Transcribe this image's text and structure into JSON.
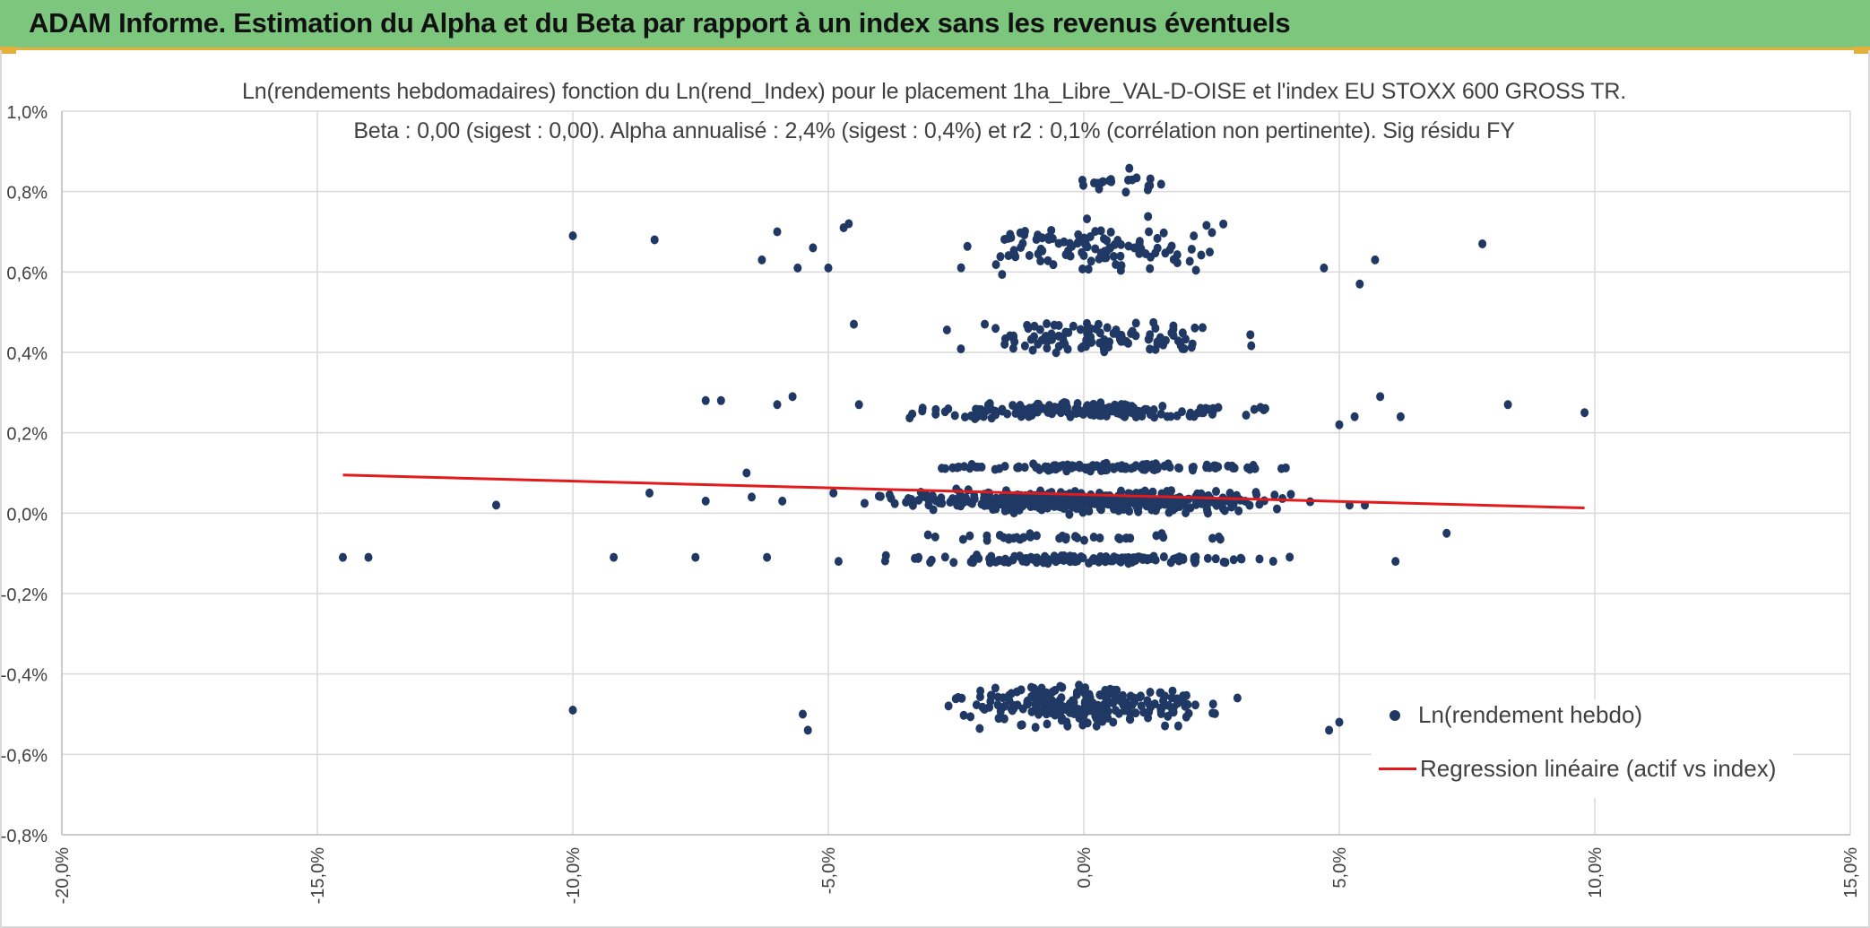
{
  "header": {
    "title": "ADAM Informe. Estimation du Alpha et du Beta par rapport à un index sans les revenus éventuels",
    "accent_color": "#7dc67d"
  },
  "chart_data": {
    "type": "scatter",
    "title": "Ln(rendements hebdomadaires) fonction du Ln(rend_Index) pour le placement 1ha_Libre_VAL-D-OISE et l'index EU STOXX 600 GROSS TR.",
    "subtitle": "Beta : 0,00 (sigest : 0,00). Alpha annualisé : 2,4% (sigest : 0,4%) et r2 : 0,1% (corrélation non pertinente). Sig résidu FY",
    "xlabel": "",
    "ylabel": "",
    "xlim": [
      -20,
      15
    ],
    "ylim": [
      -0.8,
      1.0
    ],
    "x_ticks": [
      "-20,0%",
      "-15,0%",
      "-10,0%",
      "-5,0%",
      "0,0%",
      "5,0%",
      "10,0%",
      "15,0%"
    ],
    "y_ticks": [
      "1,0%",
      "0,8%",
      "0,6%",
      "0,4%",
      "0,2%",
      "0,0%",
      "-0,2%",
      "-0,4%",
      "-0,6%",
      "-0,8%"
    ],
    "grid": true,
    "legend_position": "bottom-right",
    "series": [
      {
        "name": "Ln(rendement hebdo)",
        "kind": "scatter",
        "color": "#203864",
        "outliers": [
          [
            -14.5,
            -0.11
          ],
          [
            -14.0,
            -0.11
          ],
          [
            -11.5,
            0.02
          ],
          [
            -10.0,
            0.69
          ],
          [
            -10.0,
            -0.49
          ],
          [
            -9.2,
            -0.11
          ],
          [
            -8.4,
            0.68
          ],
          [
            -8.5,
            0.05
          ],
          [
            -7.6,
            -0.11
          ],
          [
            -7.4,
            0.03
          ],
          [
            -7.4,
            0.28
          ],
          [
            -7.1,
            0.28
          ],
          [
            -6.5,
            0.04
          ],
          [
            -6.3,
            0.63
          ],
          [
            -6.2,
            -0.11
          ],
          [
            -6.0,
            0.7
          ],
          [
            -6.0,
            0.27
          ],
          [
            -5.9,
            0.03
          ],
          [
            -5.7,
            0.29
          ],
          [
            -5.6,
            0.61
          ],
          [
            -5.5,
            -0.5
          ],
          [
            -5.4,
            -0.54
          ],
          [
            -5.3,
            0.66
          ],
          [
            -5.0,
            0.61
          ],
          [
            -4.9,
            0.05
          ],
          [
            -4.8,
            -0.12
          ],
          [
            -4.7,
            0.71
          ],
          [
            -4.6,
            0.72
          ],
          [
            -4.5,
            0.47
          ],
          [
            -4.4,
            0.27
          ],
          [
            4.7,
            0.61
          ],
          [
            5.0,
            0.22
          ],
          [
            5.2,
            0.02
          ],
          [
            5.3,
            0.24
          ],
          [
            5.4,
            0.57
          ],
          [
            5.5,
            0.02
          ],
          [
            5.7,
            0.63
          ],
          [
            5.8,
            0.29
          ],
          [
            6.1,
            -0.12
          ],
          [
            6.2,
            0.24
          ],
          [
            7.1,
            -0.05
          ],
          [
            7.8,
            0.67
          ],
          [
            8.3,
            0.27
          ],
          [
            9.8,
            0.25
          ],
          [
            4.8,
            -0.54
          ],
          [
            5.0,
            -0.52
          ],
          [
            -6.6,
            0.1
          ]
        ],
        "clusters": [
          {
            "x_range": [
              -4.5,
              4.5
            ],
            "y_center": 0.03,
            "y_spread": 0.035,
            "count": 420
          },
          {
            "x_range": [
              -2.5,
              2.5
            ],
            "y_center": 0.03,
            "y_spread": 0.015,
            "count": 200
          },
          {
            "x_range": [
              -3.5,
              4.3
            ],
            "y_center": 0.115,
            "y_spread": 0.012,
            "count": 120
          },
          {
            "x_range": [
              -4.2,
              4.4
            ],
            "y_center": -0.115,
            "y_spread": 0.015,
            "count": 150
          },
          {
            "x_range": [
              -4.0,
              4.0
            ],
            "y_center": -0.06,
            "y_spread": 0.012,
            "count": 40
          },
          {
            "x_range": [
              -4.0,
              4.0
            ],
            "y_center": 0.255,
            "y_spread": 0.025,
            "count": 180
          },
          {
            "x_range": [
              -3.0,
              3.5
            ],
            "y_center": 0.44,
            "y_spread": 0.06,
            "count": 110
          },
          {
            "x_range": [
              -3.0,
              3.0
            ],
            "y_center": 0.66,
            "y_spread": 0.09,
            "count": 110
          },
          {
            "x_range": [
              -0.8,
              2.0
            ],
            "y_center": 0.82,
            "y_spread": 0.05,
            "count": 20
          },
          {
            "x_range": [
              -3.0,
              3.3
            ],
            "y_center": -0.48,
            "y_spread": 0.07,
            "count": 230
          }
        ]
      },
      {
        "name": "Regression linéaire (actif vs index)",
        "kind": "line",
        "color": "#e31a1c",
        "x": [
          -14.5,
          9.8
        ],
        "y": [
          0.095,
          0.013
        ]
      }
    ]
  }
}
